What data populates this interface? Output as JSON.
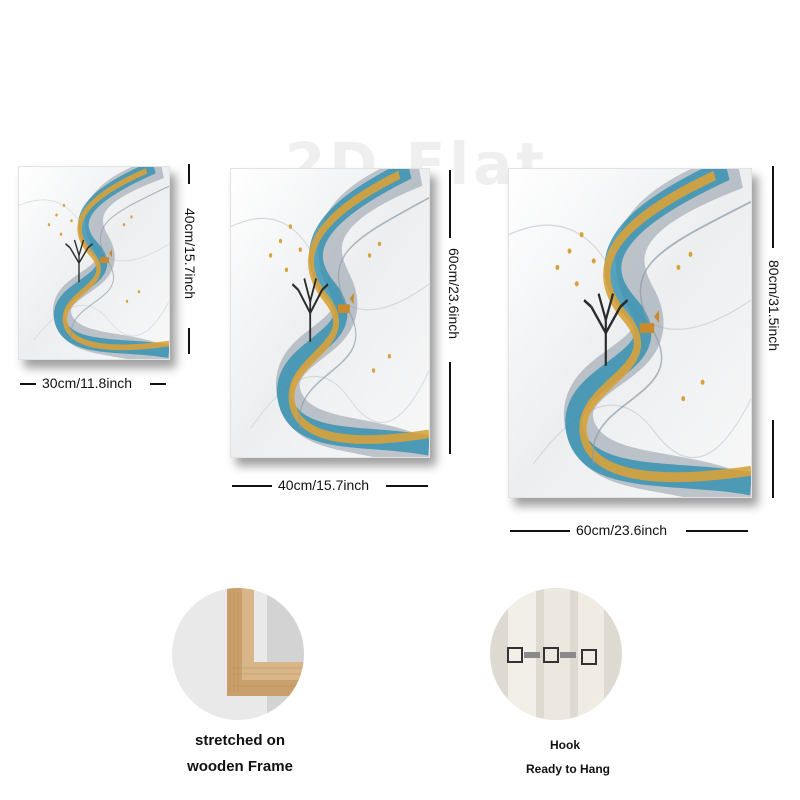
{
  "watermark": "2D Flat",
  "panels": [
    {
      "width_label": "30cm/11.8inch",
      "height_label": "40cm/15.7inch"
    },
    {
      "width_label": "40cm/15.7inch",
      "height_label": "60cm/23.6inch"
    },
    {
      "width_label": "60cm/23.6inch",
      "height_label": "80cm/31.5inch"
    }
  ],
  "features": [
    {
      "icon": "wooden-frame-corner",
      "line1": "stretched on",
      "line2": "wooden Frame"
    },
    {
      "icon": "hook",
      "line1": "Hook",
      "line2": "Ready to Hang"
    }
  ],
  "colors": {
    "teal": "#2f8fb0",
    "gold": "#d8a23a",
    "grey": "#7a8794",
    "wood": "#d8b68a"
  }
}
